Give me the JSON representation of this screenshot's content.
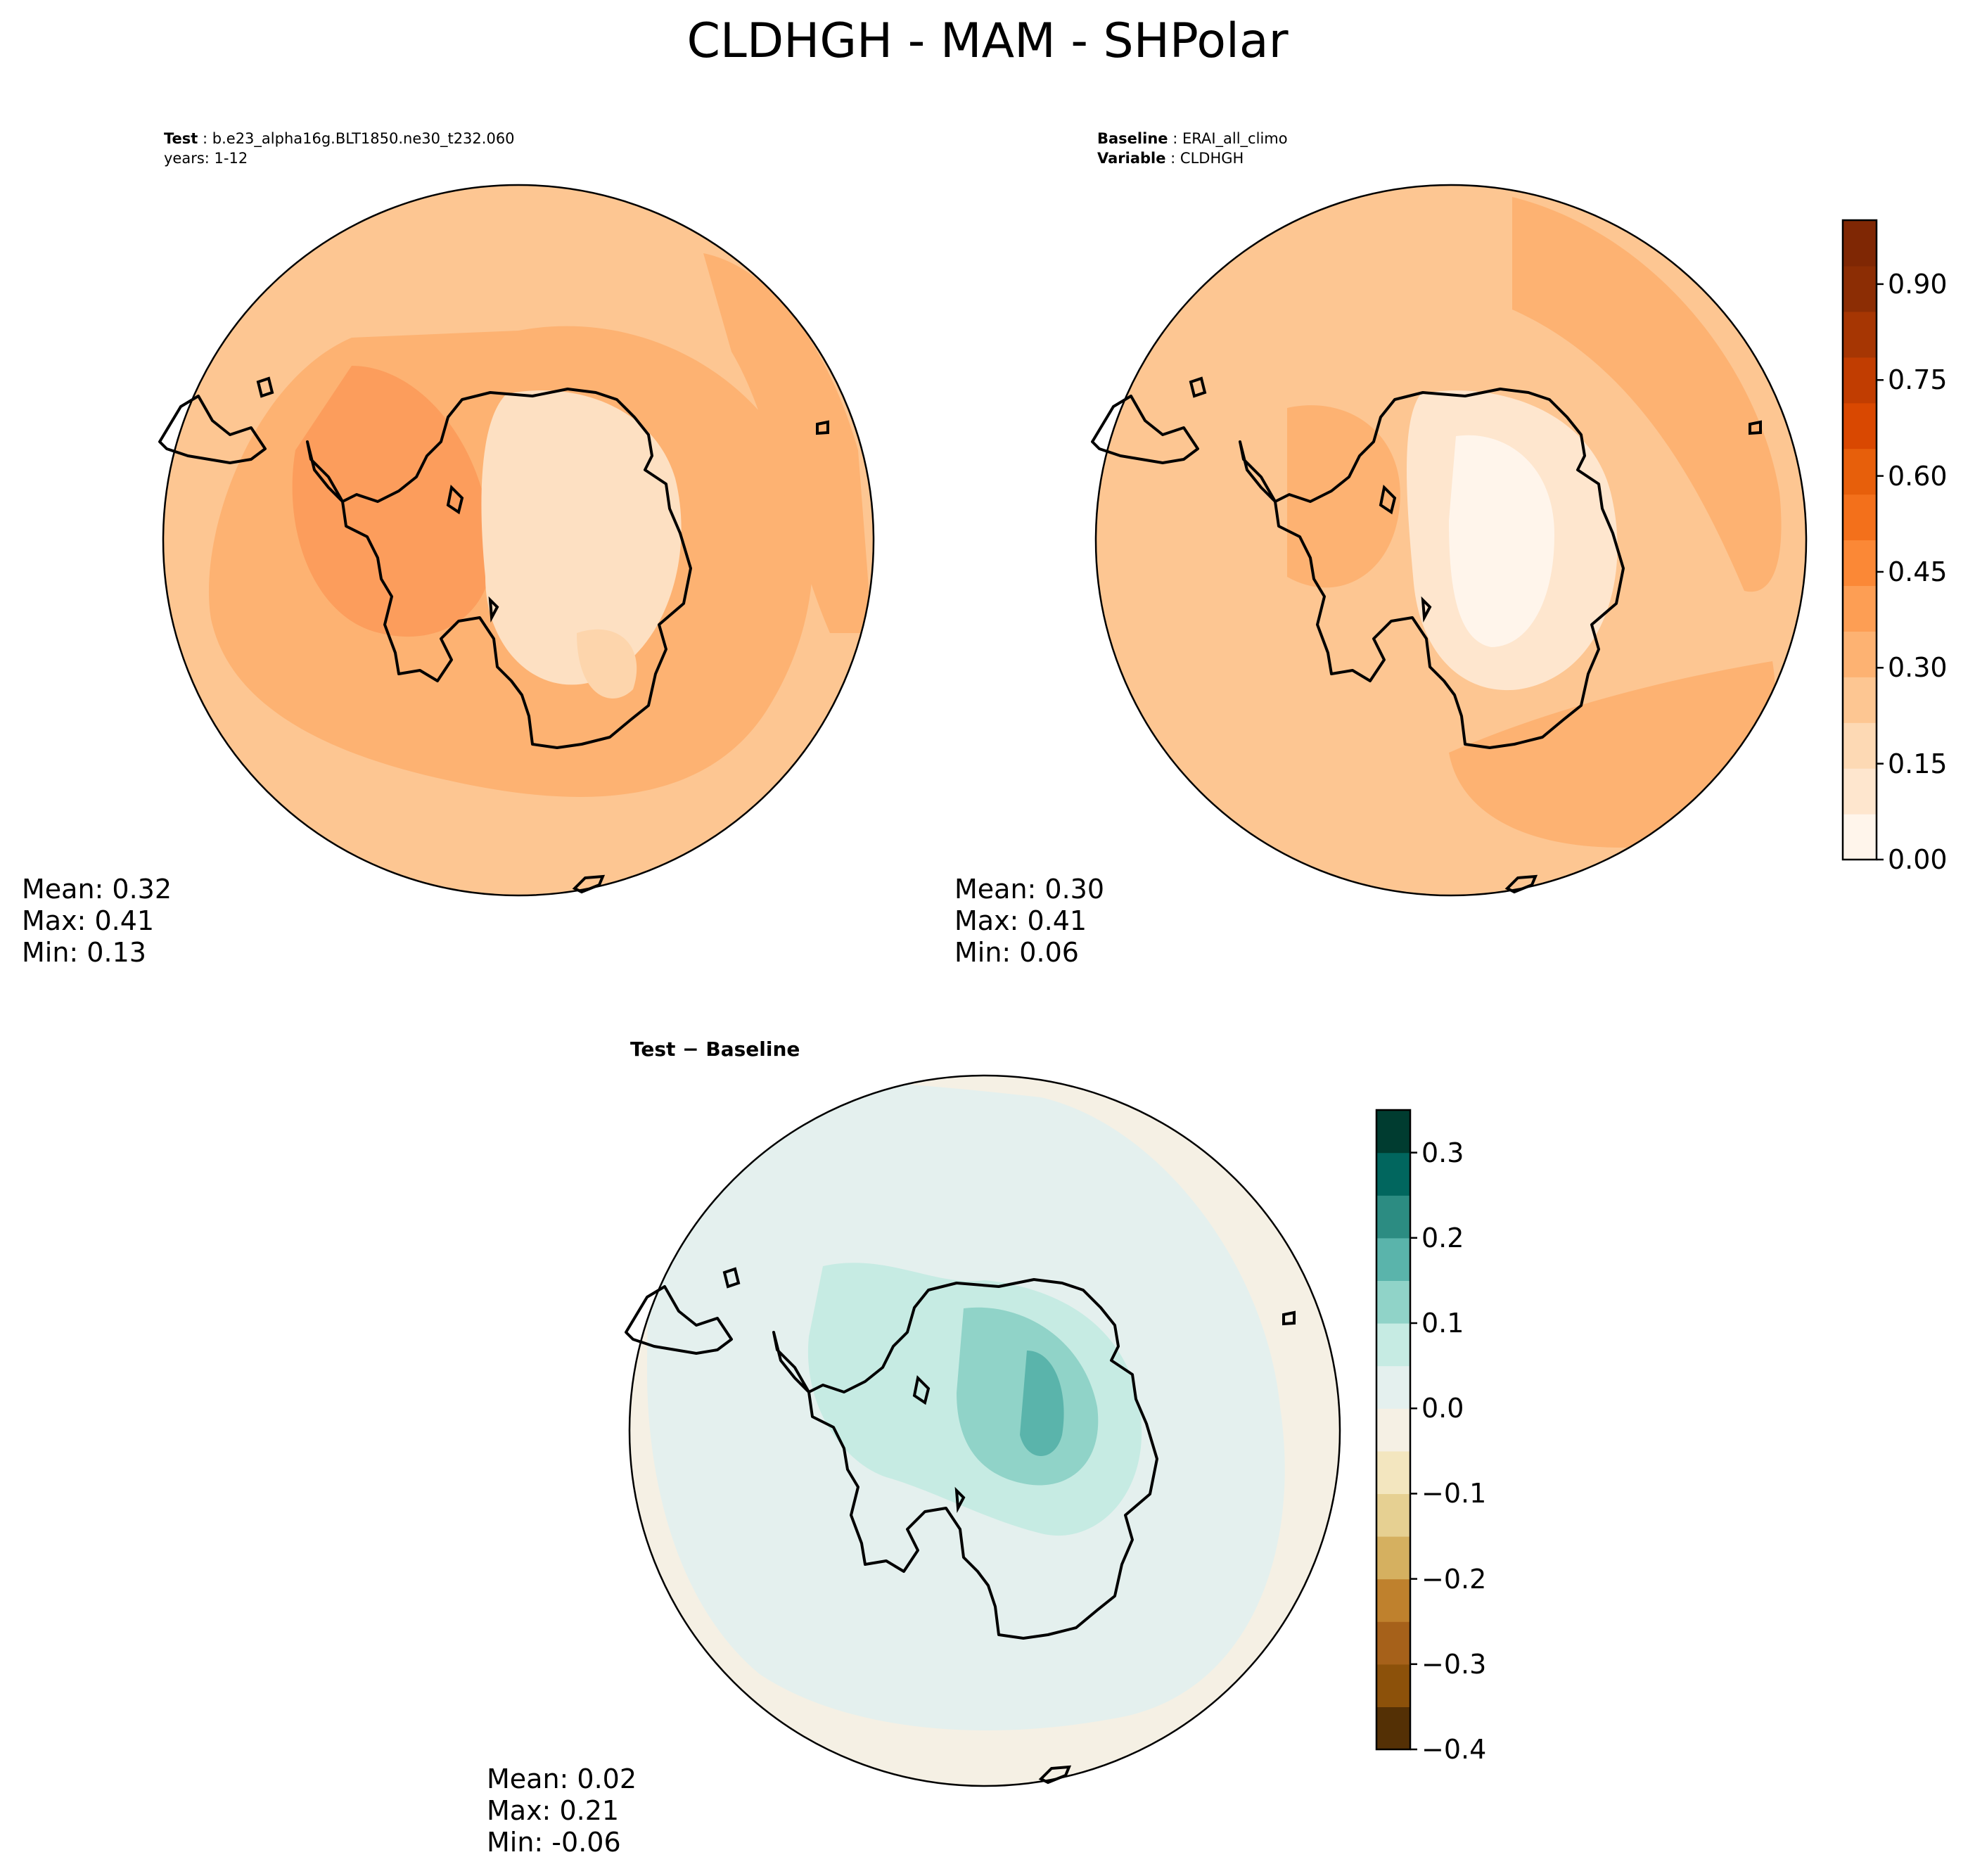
{
  "figure": {
    "title": "CLDHGH - MAM - SHPolar"
  },
  "panels": {
    "test": {
      "line1_label": "Test",
      "line1_value": "b.e23_alpha16g.BLT1850.ne30_t232.060",
      "line2": "years: 1-12",
      "stats": {
        "mean": "Mean:  0.32",
        "max": "Max:  0.41",
        "min": "Min:  0.13"
      }
    },
    "baseline": {
      "line1_label": "Baseline",
      "line1_value": "ERAI_all_climo",
      "line2_label": "Variable",
      "line2_value": "CLDHGH",
      "stats": {
        "mean": "Mean:  0.30",
        "max": "Max:  0.41",
        "min": "Min:  0.06"
      }
    },
    "diff": {
      "title_a": "Test",
      "title_sep": "−",
      "title_b": "Baseline",
      "stats": {
        "mean": "Mean:  0.02",
        "max": "Max:  0.21",
        "min": "Min: -0.06"
      }
    }
  },
  "chart_data": [
    {
      "type": "contour",
      "projection": "south-polar-stereographic",
      "panel": "test",
      "variable": "CLDHGH",
      "colormap": "Oranges",
      "colorbar": "shared-with-baseline",
      "mean": 0.32,
      "max": 0.41,
      "min": 0.13
    },
    {
      "type": "contour",
      "projection": "south-polar-stereographic",
      "panel": "baseline",
      "variable": "CLDHGH",
      "colormap": "Oranges",
      "colorbar": {
        "ticks": [
          "0.00",
          "0.15",
          "0.30",
          "0.45",
          "0.60",
          "0.75",
          "0.90"
        ],
        "vmin": 0.0,
        "vmax": 1.0,
        "levels": 20
      },
      "mean": 0.3,
      "max": 0.41,
      "min": 0.06
    },
    {
      "type": "contour",
      "projection": "south-polar-stereographic",
      "panel": "diff",
      "colormap": "BrBG",
      "colorbar": {
        "ticks": [
          "0.3",
          "0.2",
          "0.1",
          "0.0",
          "−0.1",
          "−0.2",
          "−0.3",
          "−0.4"
        ],
        "vmin": -0.4,
        "vmax": 0.35,
        "levels": 15
      },
      "mean": 0.02,
      "max": 0.21,
      "min": -0.06
    }
  ],
  "colors": {
    "oranges": [
      "#fff5eb",
      "#fee6ce",
      "#fdd9b4",
      "#fdc692",
      "#fdb272",
      "#fd9e54",
      "#fb8836",
      "#f3701b",
      "#e75f0b",
      "#d94801",
      "#c13d01",
      "#a63603",
      "#8c2d04",
      "#7f2704"
    ],
    "brbg": [
      "#543005",
      "#8c510a",
      "#a6611a",
      "#bf812d",
      "#d5b060",
      "#e6d092",
      "#f3e6bf",
      "#f5f0e4",
      "#e4f0ee",
      "#c6ebe3",
      "#90d3c8",
      "#5ab4ab",
      "#2c8c82",
      "#01665e",
      "#003c30"
    ]
  }
}
